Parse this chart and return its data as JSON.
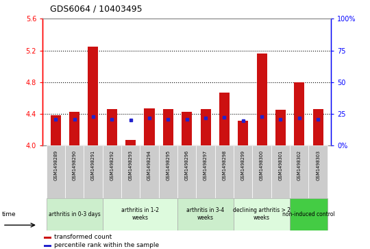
{
  "title": "GDS6064 / 10403495",
  "samples": [
    "GSM1498289",
    "GSM1498290",
    "GSM1498291",
    "GSM1498292",
    "GSM1498293",
    "GSM1498294",
    "GSM1498295",
    "GSM1498296",
    "GSM1498297",
    "GSM1498298",
    "GSM1498299",
    "GSM1498300",
    "GSM1498301",
    "GSM1498302",
    "GSM1498303"
  ],
  "bar_values": [
    4.38,
    4.43,
    5.25,
    4.46,
    4.07,
    4.47,
    4.46,
    4.43,
    4.46,
    4.67,
    4.31,
    5.16,
    4.45,
    4.8,
    4.46
  ],
  "blue_dot_values": [
    4.335,
    4.33,
    4.37,
    4.33,
    4.32,
    4.345,
    4.335,
    4.335,
    4.345,
    4.355,
    4.315,
    4.37,
    4.33,
    4.345,
    4.335
  ],
  "bar_color": "#cc1111",
  "blue_color": "#2222cc",
  "ymin": 4.0,
  "ymax": 5.6,
  "yticks": [
    4.0,
    4.4,
    4.8,
    5.2,
    5.6
  ],
  "yright_ticks": [
    0,
    25,
    50,
    75,
    100
  ],
  "yright_labels": [
    "0%",
    "25",
    "50",
    "75",
    "100%"
  ],
  "dotted_lines": [
    4.4,
    4.8,
    5.2
  ],
  "groups": [
    {
      "label": "arthritis in 0-3 days",
      "start": 0,
      "end": 3,
      "color": "#cceecc"
    },
    {
      "label": "arthritis in 1-2\nweeks",
      "start": 3,
      "end": 7,
      "color": "#ddfadd"
    },
    {
      "label": "arthritis in 3-4\nweeks",
      "start": 7,
      "end": 10,
      "color": "#cceecc"
    },
    {
      "label": "declining arthritis > 2\nweeks",
      "start": 10,
      "end": 13,
      "color": "#ddfadd"
    },
    {
      "label": "non-induced control",
      "start": 13,
      "end": 15,
      "color": "#44cc44"
    }
  ],
  "time_label": "time",
  "legend_red": "transformed count",
  "legend_blue": "percentile rank within the sample",
  "bar_width": 0.55,
  "base_value": 4.0,
  "sample_box_color": "#cccccc",
  "spine_color": "#888888"
}
